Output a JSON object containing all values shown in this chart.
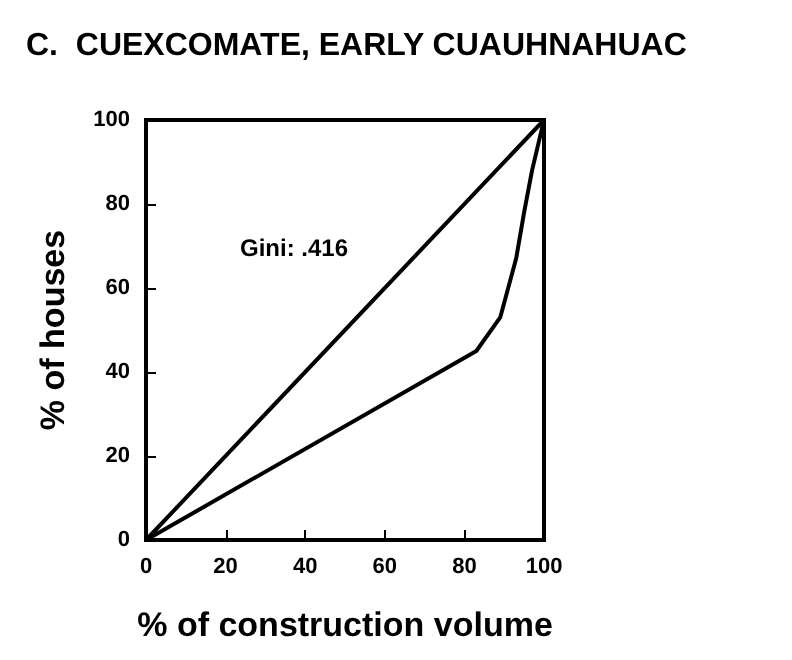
{
  "chart_data": {
    "type": "line",
    "title": "C.  CUEXCOMATE, EARLY CUAUHNAHUAC",
    "xlabel": "% of construction volume",
    "ylabel": "% of houses",
    "annotations": [
      "Gini: .416"
    ],
    "series": [
      {
        "color": "#000000",
        "x": [
          0,
          100
        ],
        "values": [
          0,
          100
        ]
      },
      {
        "color": "#000000",
        "x": [
          0,
          83,
          89,
          93,
          95,
          97,
          100
        ],
        "values": [
          0,
          45,
          53,
          67,
          78,
          88,
          100
        ]
      }
    ],
    "xlim": [
      0,
      100
    ],
    "xticks": [
      0,
      20,
      40,
      60,
      80,
      100
    ],
    "ylim": [
      0,
      100
    ],
    "yticks": [
      0,
      20,
      40,
      60,
      80,
      100
    ],
    "grid": false,
    "marker": "none",
    "line_style": "solid"
  }
}
